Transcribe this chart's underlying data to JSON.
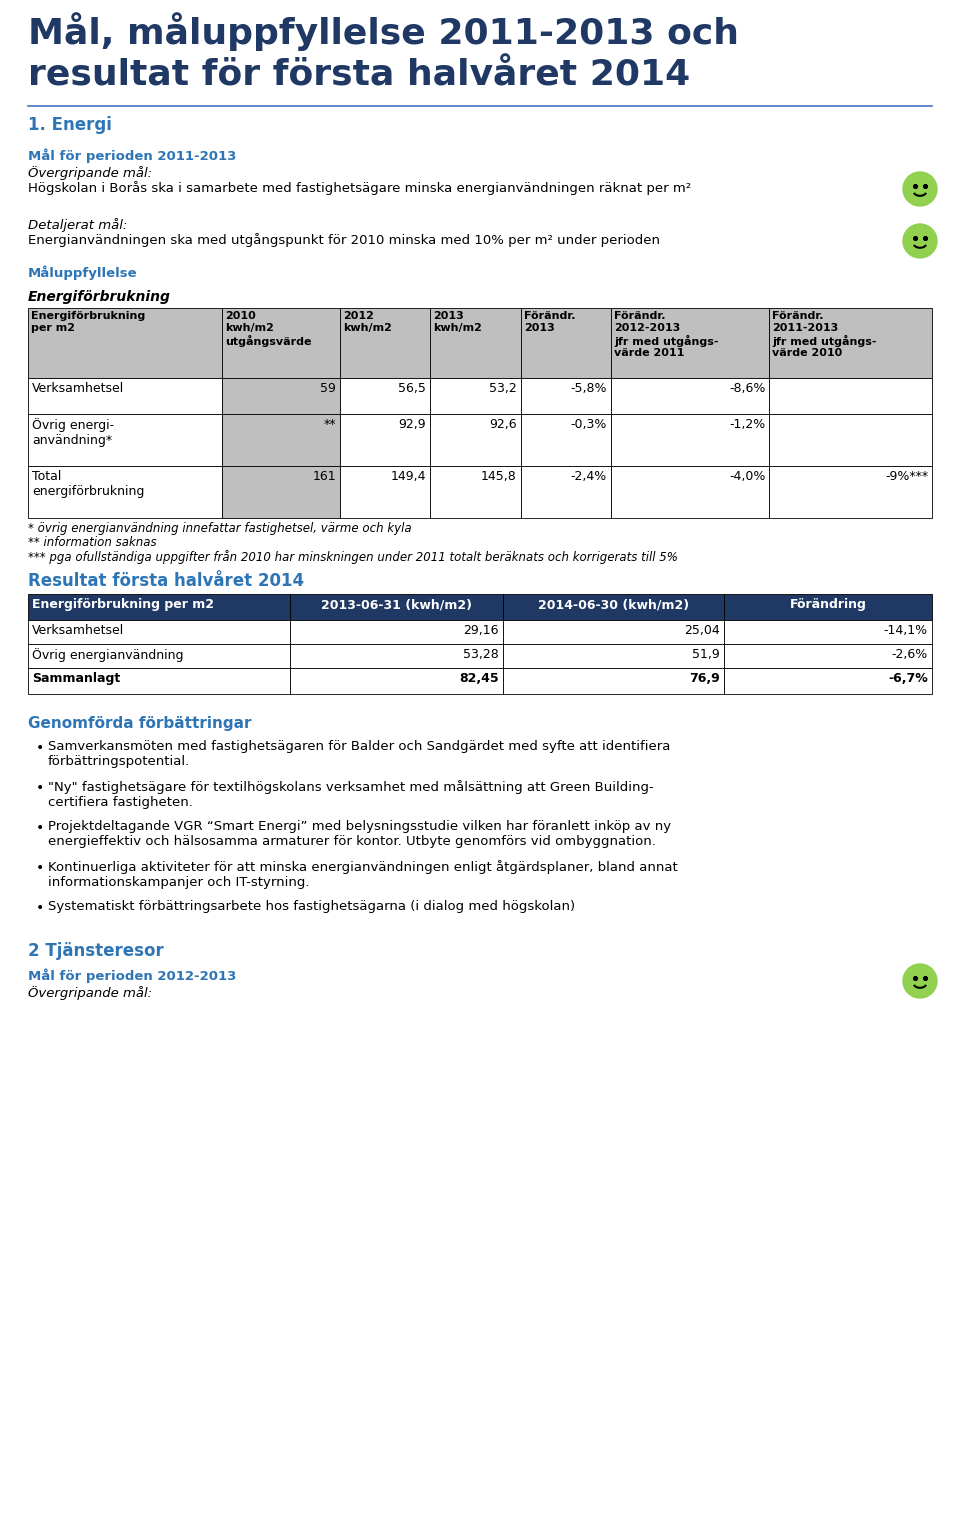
{
  "title_line1": "Mål, måluppfyllelse 2011-2013 och",
  "title_line2": "resultat för första halvåret 2014",
  "section1_heading": "1. Energi",
  "period_heading": "Mål för perioden 2011-2013",
  "overgripande_label": "Övergripande mål:",
  "overgripande_text": "Högskolan i Borås ska i samarbete med fastighetsägare minska energianvändningen räknat per m²",
  "detaljerat_label": "Detaljerat mål:",
  "detaljerat_text": "Energianvändningen ska med utgångspunkt för 2010 minska med 10% per m² under perioden",
  "maluppfyllelse_heading": "Måluppfyllelse",
  "energi_heading": "Energiförbrukning",
  "table1_headers": [
    "Energiförbrukning\nper m2",
    "2010\nkwh/m2\nutgångsvärde",
    "2012\nkwh/m2",
    "2013\nkwh/m2",
    "Förändr.\n2013",
    "Förändr.\n2012-2013\njfr med utgångs-\nvärde 2011",
    "Förändr.\n2011-2013\njfr med utgångs-\nvärde 2010"
  ],
  "table1_rows": [
    [
      "Verksamhetsel",
      "59",
      "56,5",
      "53,2",
      "-5,8%",
      "-8,6%",
      ""
    ],
    [
      "Övrig energi-\nanvändning*",
      "**",
      "92,9",
      "92,6",
      "-0,3%",
      "-1,2%",
      ""
    ],
    [
      "Total\nenergiförbrukning",
      "161",
      "149,4",
      "145,8",
      "-2,4%",
      "-4,0%",
      "-9%***"
    ]
  ],
  "footnote1": "* övrig energianvändning innefattar fastighetsel, värme och kyla",
  "footnote2": "** information saknas",
  "footnote3": "*** pga ofullständiga uppgifter från 2010 har minskningen under 2011 totalt beräknats och korrigerats till 5%",
  "resultat_heading": "Resultat första halvåret 2014",
  "table2_headers": [
    "Energiförbrukning per m2",
    "2013-06-31 (kwh/m2)",
    "2014-06-30 (kwh/m2)",
    "Förändring"
  ],
  "table2_rows": [
    [
      "Verksamhetsel",
      "29,16",
      "25,04",
      "-14,1%"
    ],
    [
      "Övrig energianvändning",
      "53,28",
      "51,9",
      "-2,6%"
    ],
    [
      "Sammanlagt",
      "82,45",
      "76,9",
      "-6,7%"
    ]
  ],
  "genomforda_heading": "Genomförda förbättringar",
  "bullet_points": [
    "Samverkansmöten med fastighetsägaren för Balder och Sandgärdet med syfte att identifiera\nförbättringspotential.",
    "\"Ny\" fastighetsägare för textilhögskolans verksamhet med målsättning att Green Building-\ncertifiera fastigheten.",
    "Projektdeltagande VGR “Smart Energi” med belysningsstudie vilken har föranlett inköp av ny\nenergieffektiv och hälsosamma armaturer för kontor. Utbyte genomförs vid ombyggnation.",
    "Kontinuerliga aktiviteter för att minska energianvändningen enligt åtgärdsplaner, bland annat\ninformationskampanjer och IT-styrning.",
    "Systematiskt förbättringsarbete hos fastighetsägarna (i dialog med högskolan)"
  ],
  "section2_heading": "2 Tjänsteresor",
  "period2_heading": "Mål för perioden 2012-2013",
  "overgripande2_label": "Övergripande mål:",
  "title_color": "#1F3864",
  "blue_heading_color": "#2E75B6",
  "header_bg_color": "#BFBFBF",
  "table2_header_bg": "#1F3864",
  "body_text_color": "#000000",
  "background_color": "#FFFFFF",
  "smiley1_color": "#92D050",
  "smiley2_color": "#92D050"
}
